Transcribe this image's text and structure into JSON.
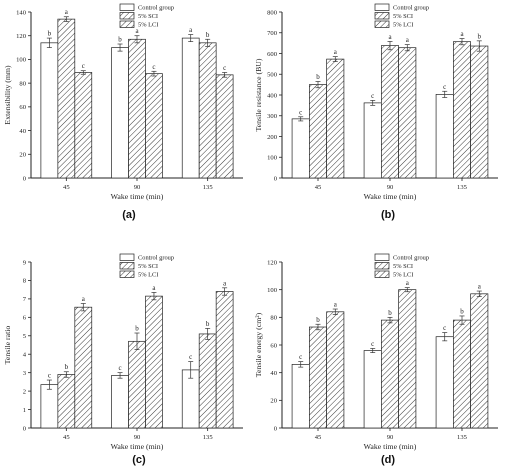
{
  "chart_data": [
    {
      "type": "bar",
      "panel_label": "(a)",
      "categories": [
        "45",
        "90",
        "135"
      ],
      "xlabel": "Wake time (min)",
      "ylabel": "Extensibility (mm)",
      "ylim": [
        0,
        140
      ],
      "yticks": [
        "0",
        "20",
        "40",
        "60",
        "80",
        "100",
        "120",
        "140"
      ],
      "series": [
        {
          "name": "Control group",
          "values": [
            114,
            110,
            118
          ],
          "errors": [
            4,
            3,
            3
          ],
          "letters": [
            "b",
            "b",
            "a"
          ]
        },
        {
          "name": "5% SCI",
          "values": [
            134,
            117,
            114
          ],
          "errors": [
            2,
            3,
            3
          ],
          "letters": [
            "a",
            "a",
            "b"
          ]
        },
        {
          "name": "5% LCI",
          "values": [
            89,
            88,
            87
          ],
          "errors": [
            1.5,
            2,
            2
          ],
          "letters": [
            "c",
            "c",
            "c"
          ]
        }
      ]
    },
    {
      "type": "bar",
      "panel_label": "(b)",
      "categories": [
        "45",
        "90",
        "135"
      ],
      "xlabel": "Wake time (min)",
      "ylabel": "Tensile resistance (BU)",
      "ylim": [
        0,
        800
      ],
      "yticks": [
        "0",
        "100",
        "200",
        "300",
        "400",
        "500",
        "600",
        "700",
        "800"
      ],
      "series": [
        {
          "name": "Control group",
          "values": [
            285,
            362,
            403
          ],
          "errors": [
            10,
            12,
            15
          ],
          "letters": [
            "c",
            "c",
            "c"
          ]
        },
        {
          "name": "5% SCI",
          "values": [
            450,
            638,
            657
          ],
          "errors": [
            15,
            20,
            15
          ],
          "letters": [
            "b",
            "a",
            "a"
          ]
        },
        {
          "name": "5% LCI",
          "values": [
            573,
            628,
            636
          ],
          "errors": [
            12,
            15,
            25
          ],
          "letters": [
            "a",
            "a",
            "b"
          ]
        }
      ]
    },
    {
      "type": "bar",
      "panel_label": "(c)",
      "categories": [
        "45",
        "90",
        "135"
      ],
      "xlabel": "Wake time (min)",
      "ylabel": "Tensile ratio",
      "ylim": [
        0,
        9
      ],
      "yticks": [
        "0",
        "1",
        "2",
        "3",
        "4",
        "5",
        "6",
        "7",
        "8",
        "9"
      ],
      "series": [
        {
          "name": "Control group",
          "values": [
            2.35,
            2.85,
            3.15
          ],
          "errors": [
            0.25,
            0.15,
            0.45
          ],
          "letters": [
            "c",
            "c",
            "c"
          ]
        },
        {
          "name": "5% SCI",
          "values": [
            2.9,
            4.7,
            5.1
          ],
          "errors": [
            0.15,
            0.45,
            0.3
          ],
          "letters": [
            "b",
            "b",
            "b"
          ]
        },
        {
          "name": "5% LCI",
          "values": [
            6.55,
            7.15,
            7.4
          ],
          "errors": [
            0.2,
            0.2,
            0.2
          ],
          "letters": [
            "a",
            "a",
            "a"
          ]
        }
      ]
    },
    {
      "type": "bar",
      "panel_label": "(d)",
      "categories": [
        "45",
        "90",
        "135"
      ],
      "xlabel": "Wake time (min)",
      "ylabel": "Tensile energy (cm²)",
      "ylim": [
        0,
        120
      ],
      "yticks": [
        "0",
        "20",
        "40",
        "60",
        "80",
        "100",
        "120"
      ],
      "series": [
        {
          "name": "Control group",
          "values": [
            46,
            56,
            66
          ],
          "errors": [
            2,
            1.5,
            3
          ],
          "letters": [
            "c",
            "c",
            "c"
          ]
        },
        {
          "name": "5% SCI",
          "values": [
            73,
            78,
            78
          ],
          "errors": [
            2,
            2,
            3
          ],
          "letters": [
            "b",
            "b",
            "b"
          ]
        },
        {
          "name": "5% LCI",
          "values": [
            84,
            100,
            97
          ],
          "errors": [
            2,
            1.5,
            2
          ],
          "letters": [
            "a",
            "a",
            "a"
          ]
        }
      ]
    }
  ]
}
